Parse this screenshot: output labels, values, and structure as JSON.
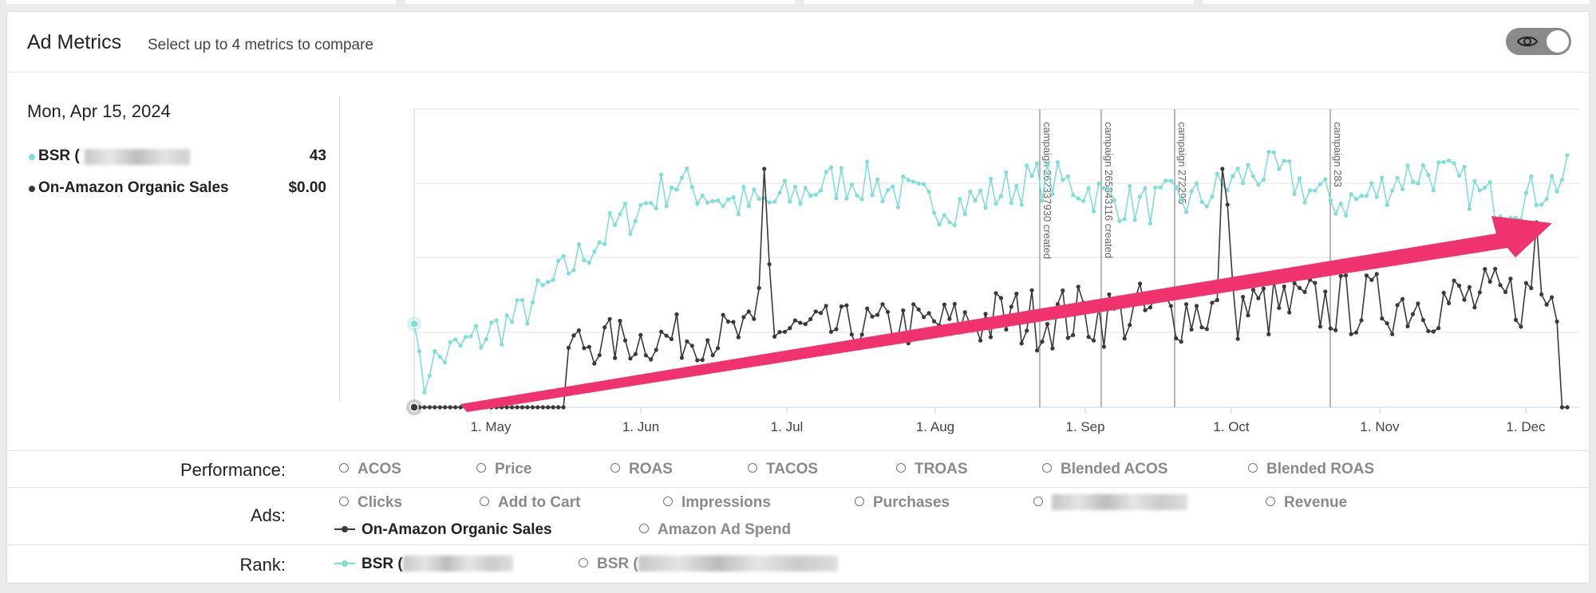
{
  "header": {
    "title": "Ad Metrics",
    "subtitle": "Select up to 4 metrics to compare"
  },
  "tooltip": {
    "date": "Mon, Apr 15, 2024",
    "rows": [
      {
        "name": "BSR (",
        "value": "43",
        "color": "#7fded8"
      },
      {
        "name": "On-Amazon Organic Sales",
        "value": "$0.00",
        "color": "#3a3a3a"
      }
    ]
  },
  "chart_data": {
    "type": "line",
    "x_ticks": [
      "1. May",
      "1. Jun",
      "1. Jul",
      "1. Aug",
      "1. Sep",
      "1. Oct",
      "1. Nov",
      "1. Dec"
    ],
    "annotations": [
      "campaign 262337930 created",
      "campaign 265843116 created",
      "campaign 272295",
      "campaign 283"
    ],
    "series": [
      {
        "name": "BSR (",
        "color": "#7fded8"
      },
      {
        "name": "On-Amazon Organic Sales",
        "color": "#3a3a3a"
      }
    ],
    "arrow_color": "#f0336e"
  },
  "sections": {
    "performance": {
      "label": "Performance:",
      "options": [
        "ACOS",
        "Price",
        "ROAS",
        "TACOS",
        "TROAS",
        "Blended ACOS",
        "Blended ROAS"
      ]
    },
    "ads": {
      "label": "Ads:",
      "row1": [
        "Clicks",
        "Add to Cart",
        "Impressions",
        "Purchases",
        "",
        "Revenue"
      ],
      "row2_selected": "On-Amazon Organic Sales",
      "row2": [
        "Amazon Ad Spend"
      ]
    },
    "rank": {
      "label": "Rank:",
      "selected": "BSR (",
      "other": "BSR ("
    }
  }
}
